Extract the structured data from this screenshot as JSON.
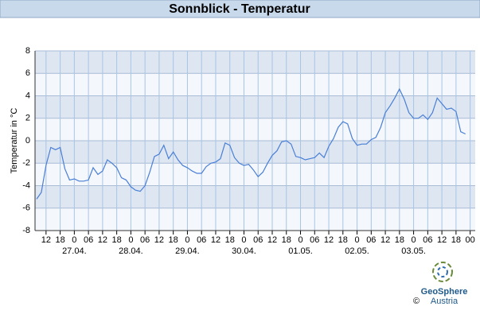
{
  "chart_data": {
    "type": "line",
    "title": "Sonnblick - Temperatur",
    "y_label": "Temperatur in °C",
    "categories": [
      null,
      null,
      "12",
      null,
      null,
      "18",
      null,
      null,
      "0",
      null,
      null,
      "06",
      null,
      null,
      "12",
      null,
      null,
      "18",
      null,
      null,
      "0",
      null,
      null,
      "06",
      null,
      null,
      "12",
      null,
      null,
      "18",
      null,
      null,
      "0",
      null,
      null,
      "06",
      null,
      null,
      "12",
      null,
      null,
      "18",
      null,
      null,
      "0",
      null,
      null,
      "06",
      null,
      null,
      "12",
      null,
      null,
      "18",
      null,
      null,
      "0",
      null,
      null,
      "06",
      null,
      null,
      "12",
      null,
      null,
      "18",
      null,
      null,
      "0",
      null,
      null,
      "06",
      null,
      null,
      "12",
      null,
      null,
      "18",
      null,
      null,
      "0",
      null,
      null,
      "06",
      null,
      null,
      "12",
      null,
      null,
      "18",
      null,
      null,
      "00"
    ],
    "dates": [
      null,
      null,
      null,
      null,
      null,
      null,
      null,
      null,
      "27.04.",
      null,
      null,
      null,
      null,
      null,
      null,
      null,
      null,
      null,
      null,
      null,
      "28.04.",
      null,
      null,
      null,
      null,
      null,
      null,
      null,
      null,
      null,
      null,
      null,
      "29.04.",
      null,
      null,
      null,
      null,
      null,
      null,
      null,
      null,
      null,
      null,
      null,
      "30.04.",
      null,
      null,
      null,
      null,
      null,
      null,
      null,
      null,
      null,
      null,
      null,
      "01.05.",
      null,
      null,
      null,
      null,
      null,
      null,
      null,
      null,
      null,
      null,
      null,
      "02.05.",
      null,
      null,
      null,
      null,
      null,
      null,
      null,
      null,
      null,
      null,
      null,
      "03.05.",
      null,
      null,
      null,
      null,
      null,
      null,
      null,
      null,
      null,
      null,
      null,
      null
    ],
    "series": [
      {
        "name": "Temperatur",
        "color": "#4a7fd6",
        "values": [
          -5.2,
          -4.6,
          -2.2,
          -0.6,
          -0.8,
          -0.6,
          -2.5,
          -3.5,
          -3.4,
          -3.6,
          -3.6,
          -3.5,
          -2.4,
          -3.0,
          -2.7,
          -1.7,
          -2.0,
          -2.4,
          -3.3,
          -3.5,
          -4.1,
          -4.4,
          -4.5,
          -4.0,
          -2.8,
          -1.4,
          -1.2,
          -0.4,
          -1.6,
          -1.0,
          -1.7,
          -2.2,
          -2.4,
          -2.7,
          -2.9,
          -2.9,
          -2.3,
          -2.0,
          -1.9,
          -1.6,
          -0.2,
          -0.4,
          -1.5,
          -2.0,
          -2.2,
          -2.1,
          -2.6,
          -3.2,
          -2.8,
          -2.0,
          -1.3,
          -0.9,
          -0.1,
          0.0,
          -0.3,
          -1.4,
          -1.5,
          -1.7,
          -1.6,
          -1.5,
          -1.1,
          -1.5,
          -0.5,
          0.2,
          1.2,
          1.7,
          1.5,
          0.2,
          -0.4,
          -0.3,
          -0.3,
          0.1,
          0.3,
          1.2,
          2.5,
          3.1,
          3.8,
          4.6,
          3.7,
          2.5,
          2.0,
          2.0,
          2.3,
          1.9,
          2.5,
          3.8,
          3.3,
          2.8,
          2.9,
          2.6,
          0.8,
          0.6,
          null
        ]
      }
    ],
    "ylim": [
      -8,
      8
    ],
    "yticks": [
      -8,
      -6,
      -4,
      -2,
      0,
      2,
      4,
      6,
      8
    ],
    "grid": true
  },
  "logo": {
    "name": "GeoSphere",
    "country": "Austria",
    "copyright": "©"
  }
}
